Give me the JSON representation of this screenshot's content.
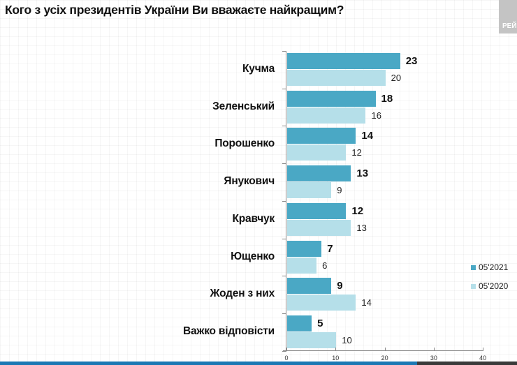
{
  "title": "Кого з усіх президентів України Ви вважаєте найкращим?",
  "logo_text": "РЕЙ",
  "colors": {
    "series_2021": "#4aa8c5",
    "series_2020": "#b5dfe9"
  },
  "chart_data": {
    "type": "bar",
    "orientation": "horizontal",
    "title": "Кого з усіх президентів України Ви вважаєте найкращим?",
    "xlabel": "",
    "ylabel": "",
    "categories": [
      "Кучма",
      "Зеленський",
      "Порошенко",
      "Янукович",
      "Кравчук",
      "Ющенко",
      "Жоден з них",
      "Важко відповісти"
    ],
    "series": [
      {
        "name": "05'2021",
        "values": [
          23,
          18,
          14,
          13,
          12,
          7,
          9,
          5
        ]
      },
      {
        "name": "05'2020",
        "values": [
          20,
          16,
          12,
          9,
          13,
          6,
          14,
          10
        ]
      }
    ],
    "xlim": [
      0,
      40
    ],
    "x_ticks": [
      "0",
      "10",
      "20",
      "30",
      "40"
    ],
    "legend_position": "right",
    "grid": false
  }
}
